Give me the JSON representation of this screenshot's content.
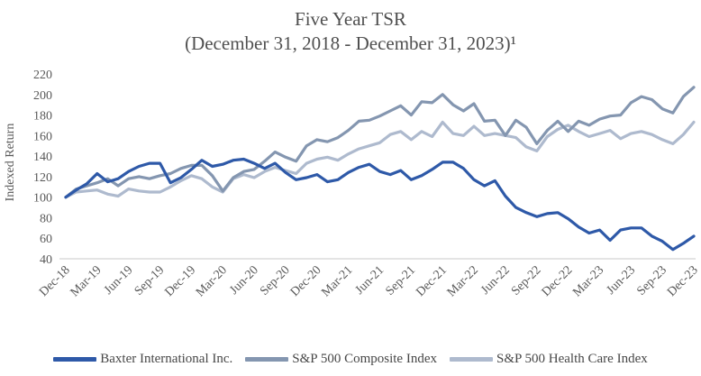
{
  "chart_data": {
    "type": "line",
    "title": "Five Year TSR",
    "subtitle": "(December 31, 2018 - December 31, 2023)¹",
    "ylabel": "Indexed Return",
    "ylim": [
      40,
      220
    ],
    "y_ticks": [
      220,
      200,
      180,
      160,
      140,
      120,
      100,
      80,
      60,
      40
    ],
    "x_frequency": "monthly",
    "x_range": "Dec-18 to Dec-23",
    "x_tick_labels": [
      "Dec-18",
      "Mar-19",
      "Jun-19",
      "Sep-19",
      "Dec-19",
      "Mar-20",
      "Jun-20",
      "Sep-20",
      "Dec-20",
      "Mar-21",
      "Jun-21",
      "Sep-21",
      "Dec-21",
      "Mar-22",
      "Jun-22",
      "Sep-22",
      "Dec-22",
      "Mar-23",
      "Jun-23",
      "Sep-23",
      "Dec-23"
    ],
    "grid": false,
    "legend_position": "bottom",
    "axis_line_color": "#c9c9c9",
    "series": [
      {
        "name": "Baxter International Inc.",
        "color": "#2e59a8",
        "values": [
          100,
          107,
          113,
          123,
          115,
          118,
          125,
          130,
          133,
          133,
          114,
          119,
          127,
          136,
          130,
          132,
          136,
          137,
          133,
          128,
          133,
          124,
          117,
          119,
          122,
          115,
          117,
          124,
          129,
          132,
          125,
          122,
          126,
          117,
          121,
          127,
          134,
          134,
          128,
          117,
          111,
          116,
          101,
          90,
          85,
          81,
          84,
          85,
          79,
          71,
          65,
          68,
          58,
          68,
          70,
          70,
          62,
          57,
          49,
          55,
          62
        ]
      },
      {
        "name": "S&P 500 Composite Index",
        "color": "#8496b0",
        "values": [
          100,
          108,
          111,
          114,
          118,
          111,
          118,
          120,
          118,
          121,
          123,
          128,
          131,
          131,
          121,
          106,
          119,
          125,
          127,
          135,
          144,
          139,
          135,
          150,
          156,
          154,
          158,
          165,
          174,
          175,
          179,
          184,
          189,
          180,
          193,
          192,
          200,
          190,
          184,
          191,
          174,
          175,
          160,
          175,
          168,
          152,
          165,
          174,
          164,
          174,
          170,
          176,
          179,
          180,
          192,
          198,
          195,
          186,
          182,
          198,
          207
        ]
      },
      {
        "name": "S&P 500 Health Care Index",
        "color": "#aebace",
        "values": [
          100,
          105,
          106,
          107,
          103,
          101,
          108,
          106,
          105,
          105,
          110,
          116,
          121,
          118,
          110,
          105,
          118,
          122,
          119,
          125,
          129,
          126,
          123,
          133,
          137,
          139,
          136,
          142,
          147,
          150,
          153,
          161,
          164,
          156,
          164,
          159,
          173,
          162,
          160,
          169,
          160,
          162,
          160,
          158,
          149,
          145,
          159,
          166,
          170,
          164,
          159,
          162,
          165,
          157,
          162,
          164,
          161,
          156,
          152,
          161,
          173
        ]
      }
    ]
  }
}
